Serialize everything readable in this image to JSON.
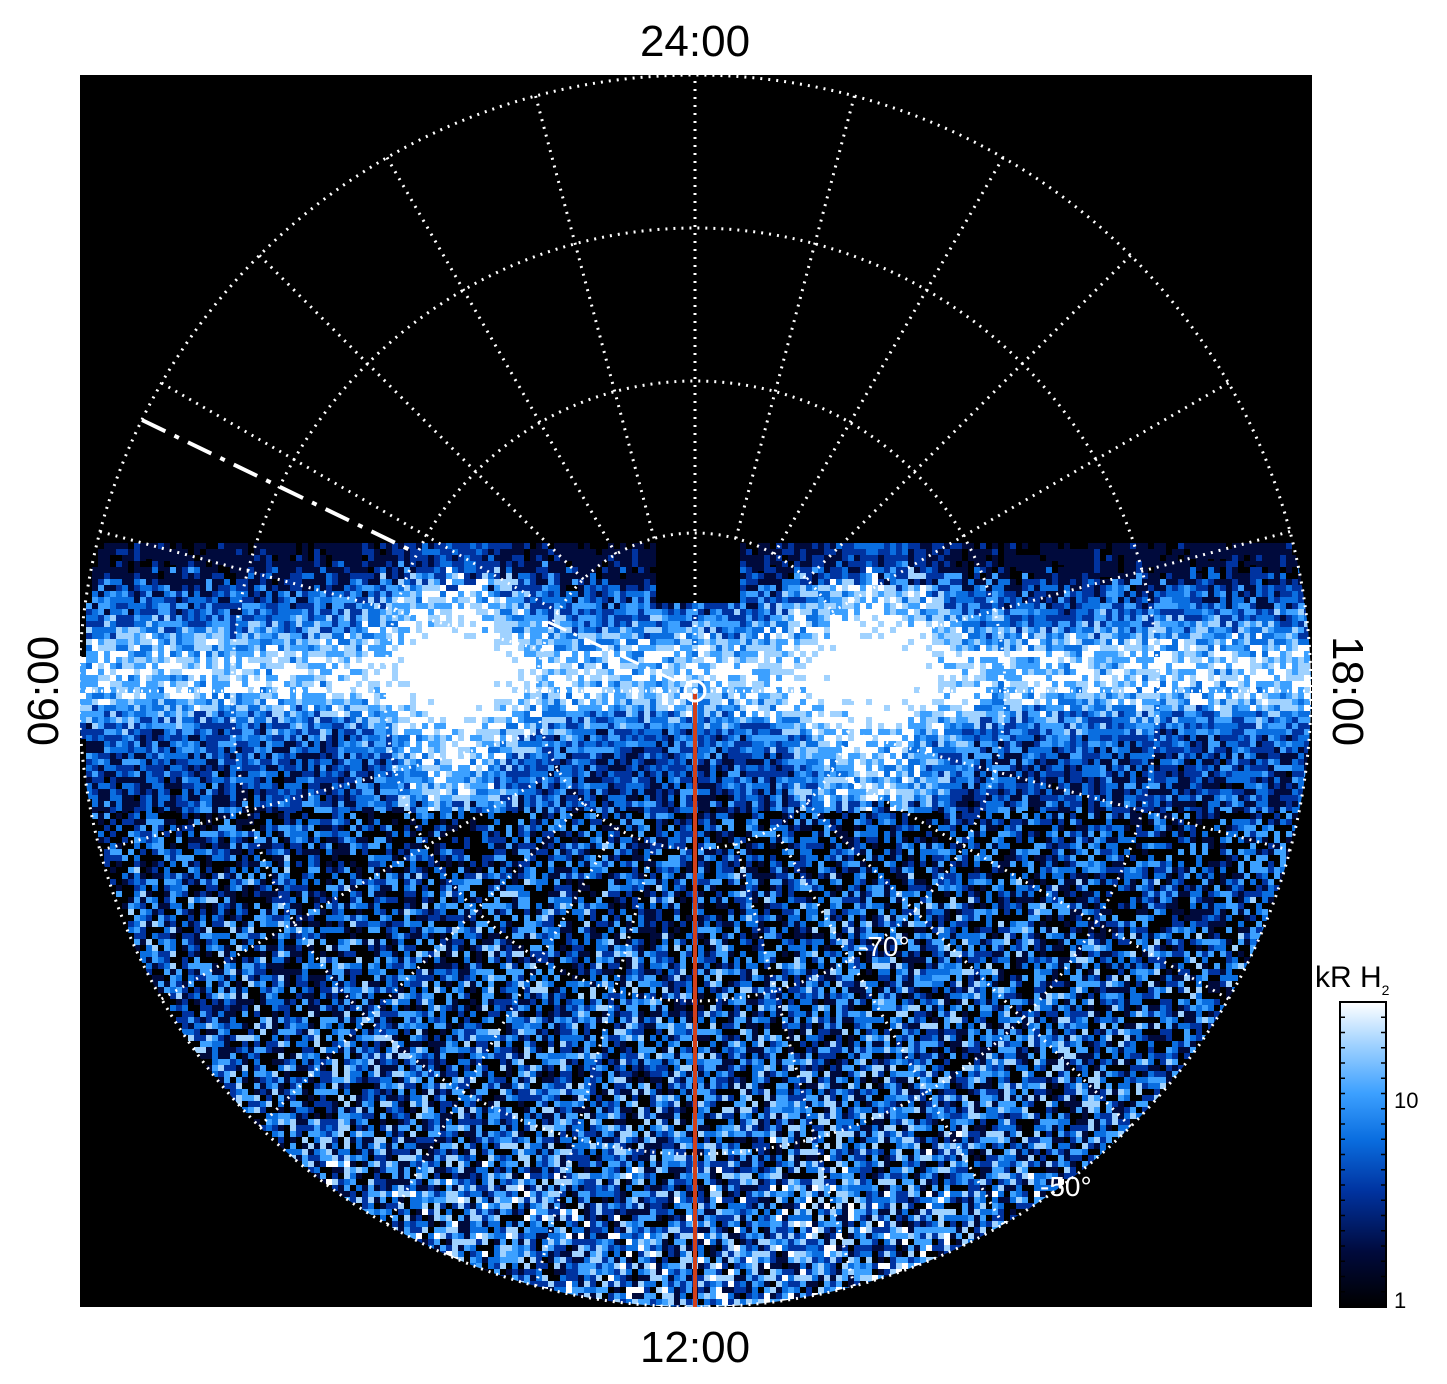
{
  "local_time_labels": {
    "top": "24:00",
    "bottom": "12:00",
    "left": "06:00",
    "right": "18:00"
  },
  "latitude_labels": [
    "-70°",
    "-50°"
  ],
  "colorbar": {
    "unit_main": "kR H",
    "unit_sub": "2",
    "ticks": [
      "10",
      "1"
    ],
    "scale": "log",
    "colors": [
      "#000000",
      "#000a3c",
      "#0033a0",
      "#0a6ee0",
      "#3ca0ff",
      "#a0d2ff",
      "#ffffff"
    ]
  },
  "overlay_colors": {
    "grid": "#ffffff",
    "noon_meridian": "#d2401a",
    "background": "#000000"
  }
}
